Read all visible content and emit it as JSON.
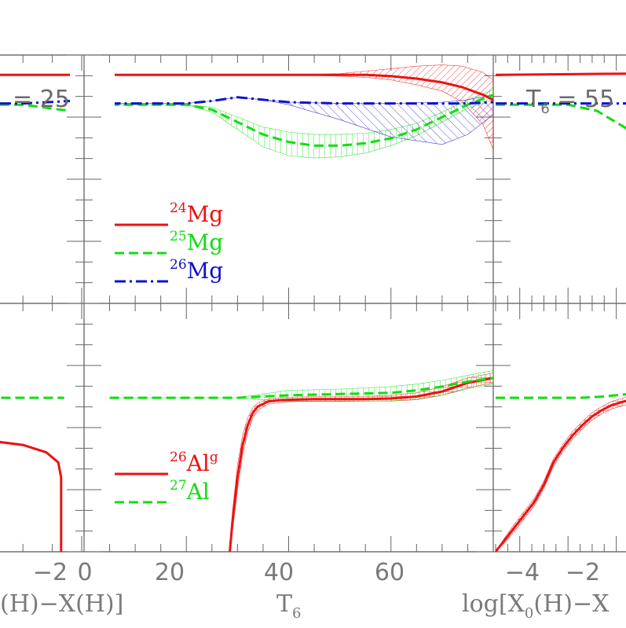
{
  "chart_data": [
    {
      "type": "line",
      "panel": "left-top",
      "panel_label": {
        "prefix": "",
        "sub": "",
        "text": "= 25"
      },
      "xlabel": "",
      "series": [
        {
          "name": "24Mg",
          "color": "#ee1111",
          "style": "solid",
          "x": [
            -5.0,
            -0.2
          ],
          "y": [
            0.92,
            0.92
          ]
        },
        {
          "name": "25Mg",
          "color": "#11dd11",
          "style": "dashed",
          "x": [
            -5.0,
            -1.0,
            -0.2
          ],
          "y": [
            0.8,
            0.8,
            0.775
          ]
        },
        {
          "name": "26Mg",
          "color": "#1111cc",
          "style": "dashdot",
          "x": [
            -5.0,
            -1.0,
            -0.2
          ],
          "y": [
            0.805,
            0.805,
            0.815
          ]
        }
      ]
    },
    {
      "type": "line",
      "panel": "center-top",
      "xlabel": "",
      "xlim": [
        0,
        80
      ],
      "legend": [
        "24Mg",
        "25Mg",
        "26Mg"
      ],
      "series": [
        {
          "name": "24Mg",
          "color": "#ee1111",
          "style": "solid",
          "x": [
            5,
            20,
            40,
            50,
            55,
            60,
            65,
            70,
            74,
            78,
            80
          ],
          "y": [
            0.92,
            0.92,
            0.92,
            0.92,
            0.92,
            0.915,
            0.905,
            0.89,
            0.87,
            0.84,
            0.82
          ],
          "band_hi": [
            0.92,
            0.92,
            0.92,
            0.925,
            0.935,
            0.945,
            0.955,
            0.96,
            0.955,
            0.93,
            0.9
          ],
          "band_lo": [
            0.92,
            0.92,
            0.92,
            0.915,
            0.91,
            0.9,
            0.88,
            0.855,
            0.81,
            0.72,
            0.62
          ]
        },
        {
          "name": "25Mg",
          "color": "#11dd11",
          "style": "dashed",
          "x": [
            5,
            20,
            25,
            30,
            35,
            40,
            45,
            50,
            55,
            60,
            65,
            70,
            75,
            80
          ],
          "y": [
            0.8,
            0.8,
            0.78,
            0.73,
            0.68,
            0.65,
            0.635,
            0.635,
            0.645,
            0.665,
            0.7,
            0.75,
            0.8,
            0.84
          ],
          "band_hi": [
            0.8,
            0.8,
            0.79,
            0.75,
            0.71,
            0.69,
            0.68,
            0.68,
            0.685,
            0.7,
            0.725,
            0.77,
            0.82,
            0.86
          ],
          "band_lo": [
            0.8,
            0.8,
            0.77,
            0.7,
            0.63,
            0.595,
            0.585,
            0.59,
            0.605,
            0.635,
            0.675,
            0.73,
            0.785,
            0.82
          ]
        },
        {
          "name": "26Mg",
          "color": "#1111cc",
          "style": "dashdot",
          "x": [
            5,
            20,
            25,
            30,
            35,
            40,
            50,
            60,
            70,
            75,
            80
          ],
          "y": [
            0.805,
            0.805,
            0.815,
            0.83,
            0.82,
            0.81,
            0.805,
            0.805,
            0.805,
            0.805,
            0.81
          ],
          "band_hi": [
            0.805,
            0.805,
            0.815,
            0.83,
            0.82,
            0.81,
            0.805,
            0.805,
            0.81,
            0.82,
            0.84
          ],
          "band_lo": [
            0.805,
            0.805,
            0.815,
            0.83,
            0.82,
            0.8,
            0.74,
            0.67,
            0.64,
            0.68,
            0.76
          ]
        }
      ]
    },
    {
      "type": "line",
      "panel": "right-top",
      "panel_label": {
        "prefix": "T",
        "sub": "6",
        "text": "= 55"
      },
      "xlabel": "",
      "series": [
        {
          "name": "24Mg",
          "color": "#ee1111",
          "style": "solid",
          "x": [
            -5.0,
            0.5
          ],
          "y": [
            0.92,
            0.925
          ]
        },
        {
          "name": "25Mg",
          "color": "#11dd11",
          "style": "dashed",
          "x": [
            -5.0,
            -2.0,
            -0.8,
            0.5
          ],
          "y": [
            0.8,
            0.8,
            0.775,
            0.7
          ]
        },
        {
          "name": "26Mg",
          "color": "#1111cc",
          "style": "dashdot",
          "x": [
            -5.0,
            0.5
          ],
          "y": [
            0.805,
            0.805
          ]
        }
      ]
    },
    {
      "type": "line",
      "panel": "left-bottom",
      "xlabel": "(H)−X(H)]",
      "xticks": [
        "−2",
        "0"
      ],
      "series": [
        {
          "name": "26Alg",
          "color": "#ee1111",
          "style": "solid",
          "x": [
            -4.5,
            -4.0,
            -3.5,
            -3.0,
            -2.5,
            -2.0,
            -1.5,
            -1.0,
            -0.6,
            -0.4,
            -0.35,
            -0.35
          ],
          "y": [
            0.05,
            0.18,
            0.3,
            0.38,
            0.42,
            0.44,
            0.445,
            0.43,
            0.4,
            0.36,
            0.3,
            0.0
          ]
        },
        {
          "name": "27Al",
          "color": "#11dd11",
          "style": "dashed",
          "x": [
            -4.5,
            -0.3
          ],
          "y": [
            0.62,
            0.62
          ]
        }
      ]
    },
    {
      "type": "line",
      "panel": "center-bottom",
      "xlabel": "T",
      "xlabel_sub": "6",
      "xlim": [
        0,
        80
      ],
      "xticks": [
        "0",
        "20",
        "40",
        "60"
      ],
      "legend": [
        "26Alg",
        "27Al"
      ],
      "series": [
        {
          "name": "26Alg",
          "color": "#ee1111",
          "style": "solid",
          "x": [
            28.5,
            29,
            30,
            31,
            32,
            33,
            34,
            36,
            38,
            40,
            45,
            50,
            55,
            60,
            65,
            70,
            75,
            80
          ],
          "y": [
            0.0,
            0.12,
            0.3,
            0.43,
            0.51,
            0.56,
            0.585,
            0.605,
            0.61,
            0.612,
            0.615,
            0.615,
            0.615,
            0.617,
            0.625,
            0.645,
            0.68,
            0.7
          ],
          "band_hi": [
            0.0,
            0.16,
            0.35,
            0.47,
            0.54,
            0.58,
            0.6,
            0.615,
            0.62,
            0.622,
            0.625,
            0.625,
            0.625,
            0.63,
            0.64,
            0.665,
            0.7,
            0.72
          ],
          "band_lo": [
            0.0,
            0.08,
            0.25,
            0.39,
            0.48,
            0.54,
            0.57,
            0.595,
            0.6,
            0.604,
            0.607,
            0.607,
            0.607,
            0.607,
            0.612,
            0.63,
            0.66,
            0.68
          ]
        },
        {
          "name": "27Al",
          "color": "#11dd11",
          "style": "dashed",
          "x": [
            5,
            20,
            30,
            35,
            40,
            50,
            60,
            65,
            70,
            75,
            80
          ],
          "y": [
            0.62,
            0.62,
            0.62,
            0.625,
            0.63,
            0.635,
            0.64,
            0.65,
            0.665,
            0.685,
            0.7
          ],
          "band_hi": [
            0.62,
            0.62,
            0.62,
            0.635,
            0.65,
            0.655,
            0.665,
            0.675,
            0.69,
            0.71,
            0.73
          ],
          "band_lo": [
            0.62,
            0.62,
            0.62,
            0.612,
            0.605,
            0.605,
            0.608,
            0.615,
            0.63,
            0.655,
            0.675
          ]
        }
      ]
    },
    {
      "type": "line",
      "panel": "right-bottom",
      "xlabel": "log[X",
      "xlabel_sub": "0",
      "xlabel_tail": "(H)−X",
      "xticks": [
        "−4",
        "−2"
      ],
      "series": [
        {
          "name": "26Alg",
          "color": "#ee1111",
          "style": "solid",
          "x": [
            -5.0,
            -4.6,
            -4.2,
            -3.8,
            -3.4,
            -3.0,
            -2.6,
            -2.2,
            -1.8,
            -1.4,
            -1.0,
            -0.6,
            -0.2,
            0.5
          ],
          "y": [
            0.0,
            0.05,
            0.1,
            0.15,
            0.2,
            0.27,
            0.36,
            0.42,
            0.47,
            0.51,
            0.545,
            0.57,
            0.59,
            0.61
          ],
          "band_hi": [
            0.0,
            0.06,
            0.115,
            0.165,
            0.215,
            0.285,
            0.375,
            0.435,
            0.485,
            0.525,
            0.56,
            0.585,
            0.605,
            0.625
          ],
          "band_lo": [
            0.0,
            0.04,
            0.085,
            0.135,
            0.185,
            0.255,
            0.345,
            0.405,
            0.455,
            0.495,
            0.53,
            0.555,
            0.575,
            0.595
          ]
        },
        {
          "name": "27Al",
          "color": "#11dd11",
          "style": "dashed",
          "x": [
            -5.0,
            -1.5,
            -0.5,
            0.5
          ],
          "y": [
            0.62,
            0.62,
            0.625,
            0.635
          ]
        }
      ]
    }
  ],
  "legend_labels": {
    "24Mg": {
      "mass": "24",
      "el": "Mg"
    },
    "25Mg": {
      "mass": "25",
      "el": "Mg"
    },
    "26Mg": {
      "mass": "26",
      "el": "Mg"
    },
    "26Alg": {
      "mass": "26",
      "el": "Al",
      "sup": "g"
    },
    "27Al": {
      "mass": "27",
      "el": "Al"
    }
  }
}
